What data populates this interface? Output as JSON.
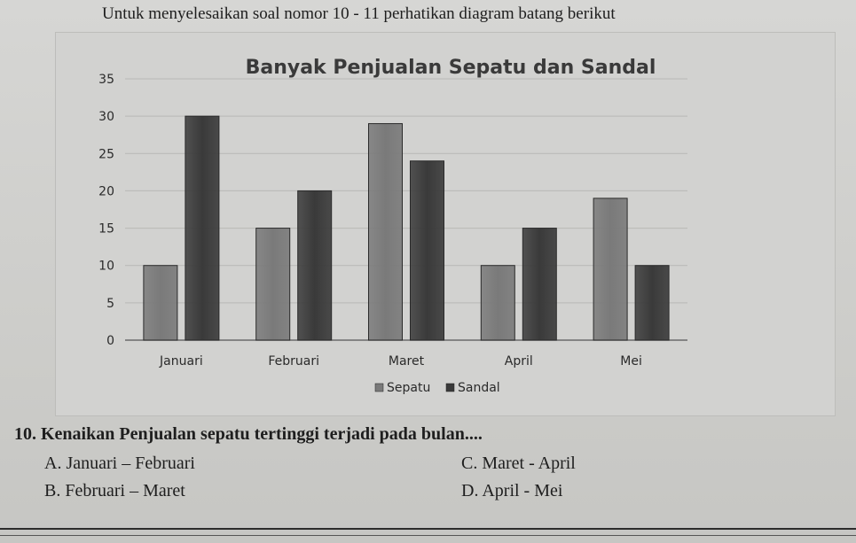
{
  "instruction": "Untuk menyelesaikan soal nomor 10 - 11 perhatikan diagram batang berikut",
  "chart_data": {
    "type": "bar",
    "title": "Banyak Penjualan Sepatu dan Sandal",
    "categories": [
      "Januari",
      "Februari",
      "Maret",
      "April",
      "Mei"
    ],
    "series": [
      {
        "name": "Sepatu",
        "values": [
          10,
          15,
          29,
          10,
          19
        ],
        "color": "#7a7a7a"
      },
      {
        "name": "Sandal",
        "values": [
          30,
          20,
          24,
          15,
          10
        ],
        "color": "#3a3a3a"
      }
    ],
    "ylim": [
      0,
      35
    ],
    "yticks": [
      "0",
      "5",
      "10",
      "15",
      "20",
      "25",
      "30",
      "35"
    ],
    "grid": true,
    "legend_position": "bottom"
  },
  "question": {
    "text": "10. Kenaikan Penjualan sepatu tertinggi terjadi pada bulan....",
    "options": {
      "a": "A. Januari – Februari",
      "b": "B. Februari – Maret",
      "c": "C. Maret - April",
      "d": "D. April - Mei"
    }
  }
}
